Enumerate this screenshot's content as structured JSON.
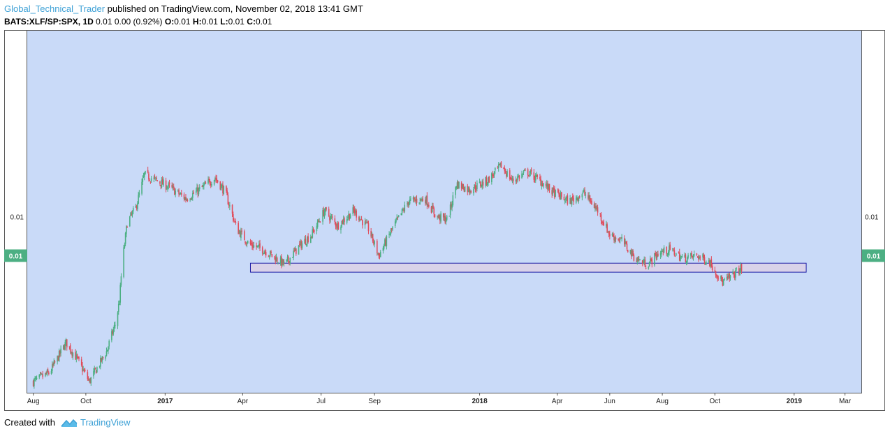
{
  "header": {
    "author": "Global_Technical_Trader",
    "published": " published on TradingView.com, November 02, 2018 13:41 GMT",
    "symbol": "BATS:XLF/SP:SPX, 1D",
    "change": " 0.01 0.00 (0.92%) ",
    "o_label": "O:",
    "o_val": "0.01",
    "h_label": " H:",
    "h_val": "0.01",
    "l_label": " L:",
    "l_val": "0.01",
    "c_label": " C:",
    "c_val": "0.01"
  },
  "footer": {
    "created": "Created with",
    "brand": "TradingView"
  },
  "colors": {
    "background": "#c9daf8",
    "up": "#4caf83",
    "down": "#e04b5a",
    "zone_fill": "#d9d2e9",
    "zone_border": "#1a1aa6",
    "price_badge": "#4caf83"
  },
  "chart_data": {
    "type": "candlestick",
    "y_axis": {
      "labels": [
        "0.01",
        "0.01"
      ],
      "current_price_badge": "0.01",
      "sides": [
        "left",
        "right"
      ]
    },
    "x_axis": {
      "ticks": [
        {
          "label": "Aug",
          "bold": false
        },
        {
          "label": "Oct",
          "bold": false
        },
        {
          "label": "2017",
          "bold": true
        },
        {
          "label": "Apr",
          "bold": false
        },
        {
          "label": "Jul",
          "bold": false
        },
        {
          "label": "Sep",
          "bold": false
        },
        {
          "label": "2018",
          "bold": true
        },
        {
          "label": "Apr",
          "bold": false
        },
        {
          "label": "Jun",
          "bold": false
        },
        {
          "label": "Aug",
          "bold": false
        },
        {
          "label": "Oct",
          "bold": false
        },
        {
          "label": "2019",
          "bold": true
        },
        {
          "label": "Mar",
          "bold": false
        }
      ]
    },
    "y_range": [
      0.0,
      1.0
    ],
    "price_path_note": "",
    "price_path": [
      [
        "2016-08-01",
        0.03
      ],
      [
        "2016-08-20",
        0.06
      ],
      [
        "2016-09-08",
        0.16
      ],
      [
        "2016-09-20",
        0.11
      ],
      [
        "2016-10-05",
        0.03
      ],
      [
        "2016-10-25",
        0.13
      ],
      [
        "2016-11-05",
        0.23
      ],
      [
        "2016-11-09",
        0.3
      ],
      [
        "2016-11-12",
        0.42
      ],
      [
        "2016-11-18",
        0.56
      ],
      [
        "2016-11-28",
        0.61
      ],
      [
        "2016-12-08",
        0.72
      ],
      [
        "2017-01-05",
        0.68
      ],
      [
        "2017-01-25",
        0.64
      ],
      [
        "2017-02-10",
        0.67
      ],
      [
        "2017-02-28",
        0.71
      ],
      [
        "2017-03-12",
        0.66
      ],
      [
        "2017-03-25",
        0.54
      ],
      [
        "2017-04-08",
        0.49
      ],
      [
        "2017-04-25",
        0.47
      ],
      [
        "2017-05-10",
        0.44
      ],
      [
        "2017-05-20",
        0.42
      ],
      [
        "2017-06-05",
        0.48
      ],
      [
        "2017-06-20",
        0.52
      ],
      [
        "2017-07-05",
        0.6
      ],
      [
        "2017-07-20",
        0.55
      ],
      [
        "2017-08-08",
        0.6
      ],
      [
        "2017-08-25",
        0.54
      ],
      [
        "2017-09-06",
        0.45
      ],
      [
        "2017-09-20",
        0.53
      ],
      [
        "2017-10-10",
        0.63
      ],
      [
        "2017-10-30",
        0.64
      ],
      [
        "2017-11-12",
        0.58
      ],
      [
        "2017-11-25",
        0.57
      ],
      [
        "2017-12-05",
        0.69
      ],
      [
        "2017-12-20",
        0.67
      ],
      [
        "2018-01-10",
        0.7
      ],
      [
        "2018-01-26",
        0.75
      ],
      [
        "2018-02-08",
        0.7
      ],
      [
        "2018-02-25",
        0.73
      ],
      [
        "2018-03-12",
        0.7
      ],
      [
        "2018-03-28",
        0.66
      ],
      [
        "2018-04-15",
        0.63
      ],
      [
        "2018-05-02",
        0.66
      ],
      [
        "2018-05-18",
        0.6
      ],
      [
        "2018-06-01",
        0.52
      ],
      [
        "2018-06-15",
        0.5
      ],
      [
        "2018-07-01",
        0.44
      ],
      [
        "2018-07-15",
        0.42
      ],
      [
        "2018-07-28",
        0.46
      ],
      [
        "2018-08-10",
        0.47
      ],
      [
        "2018-08-25",
        0.44
      ],
      [
        "2018-09-10",
        0.45
      ],
      [
        "2018-09-25",
        0.43
      ],
      [
        "2018-10-10",
        0.36
      ],
      [
        "2018-10-20",
        0.38
      ],
      [
        "2018-10-28",
        0.4
      ],
      [
        "2018-11-02",
        0.41
      ]
    ],
    "annotations": [
      {
        "type": "rectangle",
        "from": "2017-04-10",
        "to": "2019-01-15",
        "y_low": 0.395,
        "y_high": 0.425
      }
    ]
  }
}
